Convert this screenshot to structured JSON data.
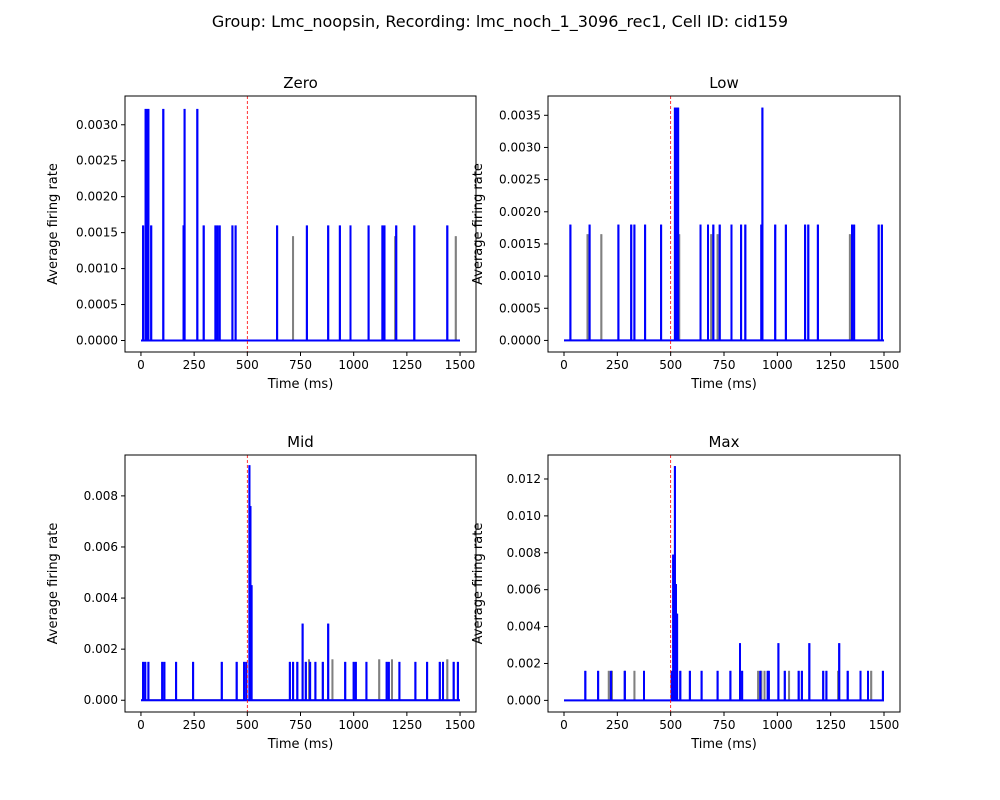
{
  "figure": {
    "suptitle": "Group: Lmc_noopsin, Recording: lmc_noch_1_3096_rec1, Cell ID: cid159"
  },
  "colors": {
    "trace_main": "#0000ff",
    "trace_other": "#808080",
    "marker": "#ff0000",
    "axes": "#000000"
  },
  "chart_data": [
    {
      "type": "line",
      "title": "Zero",
      "xlabel": "Time (ms)",
      "ylabel": "Average firing rate",
      "xlim": [
        -75,
        1575
      ],
      "ylim": [
        -0.00016,
        0.0034
      ],
      "xticks": [
        0,
        250,
        500,
        750,
        1000,
        1250,
        1500
      ],
      "yticks": [
        0.0,
        0.0005,
        0.001,
        0.0015,
        0.002,
        0.0025,
        0.003
      ],
      "ytick_labels": [
        "0.0000",
        "0.0005",
        "0.0010",
        "0.0015",
        "0.0020",
        "0.0025",
        "0.0030"
      ],
      "vline_x": 500,
      "series": [
        {
          "color": "#808080",
          "spikes": [
            [
              715,
              0.00145
            ],
            [
              1195,
              0.00145
            ],
            [
              1480,
              0.00145
            ]
          ]
        },
        {
          "color": "#0000ff",
          "spikes": [
            [
              10,
              0.0016
            ],
            [
              22,
              0.00322
            ],
            [
              28,
              0.00322
            ],
            [
              35,
              0.00322
            ],
            [
              48,
              0.0016
            ],
            [
              105,
              0.00322
            ],
            [
              200,
              0.0016
            ],
            [
              205,
              0.00322
            ],
            [
              265,
              0.00322
            ],
            [
              295,
              0.0016
            ],
            [
              350,
              0.0016
            ],
            [
              360,
              0.0016
            ],
            [
              370,
              0.0016
            ],
            [
              430,
              0.0016
            ],
            [
              445,
              0.0016
            ],
            [
              640,
              0.0016
            ],
            [
              780,
              0.0016
            ],
            [
              880,
              0.0016
            ],
            [
              935,
              0.0016
            ],
            [
              985,
              0.0016
            ],
            [
              1070,
              0.0016
            ],
            [
              1135,
              0.0016
            ],
            [
              1145,
              0.0016
            ],
            [
              1200,
              0.0016
            ],
            [
              1285,
              0.0016
            ],
            [
              1440,
              0.0016
            ]
          ]
        }
      ]
    },
    {
      "type": "line",
      "title": "Low",
      "xlabel": "Time (ms)",
      "ylabel": "Average firing rate",
      "xlim": [
        -75,
        1575
      ],
      "ylim": [
        -0.00018,
        0.0038
      ],
      "xticks": [
        0,
        250,
        500,
        750,
        1000,
        1250,
        1500
      ],
      "yticks": [
        0.0,
        0.0005,
        0.001,
        0.0015,
        0.002,
        0.0025,
        0.003,
        0.0035
      ],
      "ytick_labels": [
        "0.0000",
        "0.0005",
        "0.0010",
        "0.0015",
        "0.0020",
        "0.0025",
        "0.0030",
        "0.0035"
      ],
      "vline_x": 500,
      "series": [
        {
          "color": "#808080",
          "spikes": [
            [
              110,
              0.00165
            ],
            [
              175,
              0.00165
            ],
            [
              540,
              0.00165
            ],
            [
              690,
              0.00165
            ],
            [
              720,
              0.00165
            ],
            [
              1340,
              0.00165
            ]
          ]
        },
        {
          "color": "#0000ff",
          "spikes": [
            [
              30,
              0.0018
            ],
            [
              120,
              0.0018
            ],
            [
              255,
              0.0018
            ],
            [
              315,
              0.0018
            ],
            [
              330,
              0.0018
            ],
            [
              380,
              0.0018
            ],
            [
              455,
              0.0018
            ],
            [
              520,
              0.00362
            ],
            [
              528,
              0.00362
            ],
            [
              535,
              0.00362
            ],
            [
              640,
              0.0018
            ],
            [
              675,
              0.0018
            ],
            [
              700,
              0.0018
            ],
            [
              730,
              0.0018
            ],
            [
              785,
              0.0018
            ],
            [
              830,
              0.0018
            ],
            [
              850,
              0.0018
            ],
            [
              925,
              0.0018
            ],
            [
              930,
              0.00362
            ],
            [
              990,
              0.0018
            ],
            [
              1040,
              0.0018
            ],
            [
              1130,
              0.0018
            ],
            [
              1145,
              0.0018
            ],
            [
              1190,
              0.0018
            ],
            [
              1350,
              0.0018
            ],
            [
              1360,
              0.0018
            ],
            [
              1475,
              0.0018
            ],
            [
              1490,
              0.0018
            ]
          ]
        }
      ]
    },
    {
      "type": "line",
      "title": "Mid",
      "xlabel": "Time (ms)",
      "ylabel": "Average firing rate",
      "xlim": [
        -75,
        1575
      ],
      "ylim": [
        -0.00046,
        0.0096
      ],
      "xticks": [
        0,
        250,
        500,
        750,
        1000,
        1250,
        1500
      ],
      "yticks": [
        0.0,
        0.002,
        0.004,
        0.006,
        0.008
      ],
      "ytick_labels": [
        "0.000",
        "0.002",
        "0.004",
        "0.006",
        "0.008"
      ],
      "vline_x": 500,
      "series": [
        {
          "color": "#808080",
          "spikes": [
            [
              790,
              0.0016
            ],
            [
              900,
              0.0016
            ],
            [
              1120,
              0.0016
            ],
            [
              1180,
              0.0016
            ],
            [
              1440,
              0.0016
            ]
          ]
        },
        {
          "color": "#0000ff",
          "spikes": [
            [
              10,
              0.0015
            ],
            [
              20,
              0.0015
            ],
            [
              35,
              0.0015
            ],
            [
              100,
              0.0015
            ],
            [
              110,
              0.0015
            ],
            [
              165,
              0.0015
            ],
            [
              245,
              0.0015
            ],
            [
              380,
              0.0015
            ],
            [
              450,
              0.0015
            ],
            [
              485,
              0.0015
            ],
            [
              495,
              0.0015
            ],
            [
              510,
              0.0092
            ],
            [
              515,
              0.0076
            ],
            [
              520,
              0.0045
            ],
            [
              700,
              0.0015
            ],
            [
              715,
              0.0015
            ],
            [
              735,
              0.0015
            ],
            [
              760,
              0.003
            ],
            [
              775,
              0.0015
            ],
            [
              795,
              0.0015
            ],
            [
              820,
              0.0015
            ],
            [
              855,
              0.0015
            ],
            [
              880,
              0.003
            ],
            [
              960,
              0.0015
            ],
            [
              1000,
              0.0015
            ],
            [
              1010,
              0.0015
            ],
            [
              1060,
              0.0015
            ],
            [
              1155,
              0.0015
            ],
            [
              1165,
              0.0015
            ],
            [
              1215,
              0.0015
            ],
            [
              1290,
              0.0015
            ],
            [
              1345,
              0.0015
            ],
            [
              1405,
              0.0015
            ],
            [
              1420,
              0.0015
            ],
            [
              1470,
              0.0015
            ],
            [
              1490,
              0.0015
            ]
          ]
        }
      ]
    },
    {
      "type": "line",
      "title": "Max",
      "xlabel": "Time (ms)",
      "ylabel": "Average firing rate",
      "xlim": [
        -75,
        1575
      ],
      "ylim": [
        -0.00063,
        0.0133
      ],
      "xticks": [
        0,
        250,
        500,
        750,
        1000,
        1250,
        1500
      ],
      "yticks": [
        0.0,
        0.002,
        0.004,
        0.006,
        0.008,
        0.01,
        0.012
      ],
      "ytick_labels": [
        "0.000",
        "0.002",
        "0.004",
        "0.006",
        "0.008",
        "0.010",
        "0.012"
      ],
      "vline_x": 500,
      "series": [
        {
          "color": "#808080",
          "spikes": [
            [
              210,
              0.0016
            ],
            [
              225,
              0.0016
            ],
            [
              285,
              0.0016
            ],
            [
              330,
              0.0016
            ],
            [
              910,
              0.0016
            ],
            [
              925,
              0.0016
            ],
            [
              940,
              0.0016
            ],
            [
              1055,
              0.0016
            ],
            [
              1285,
              0.0016
            ],
            [
              1440,
              0.0016
            ]
          ]
        },
        {
          "color": "#0000ff",
          "spikes": [
            [
              100,
              0.0016
            ],
            [
              160,
              0.0016
            ],
            [
              220,
              0.0016
            ],
            [
              285,
              0.0016
            ],
            [
              375,
              0.0016
            ],
            [
              505,
              0.0016
            ],
            [
              512,
              0.0079
            ],
            [
              520,
              0.0127
            ],
            [
              525,
              0.0063
            ],
            [
              530,
              0.0047
            ],
            [
              545,
              0.0016
            ],
            [
              590,
              0.0016
            ],
            [
              645,
              0.0016
            ],
            [
              720,
              0.0016
            ],
            [
              780,
              0.0016
            ],
            [
              825,
              0.0031
            ],
            [
              835,
              0.0016
            ],
            [
              920,
              0.0016
            ],
            [
              955,
              0.0016
            ],
            [
              960,
              0.0016
            ],
            [
              1005,
              0.0031
            ],
            [
              1035,
              0.0016
            ],
            [
              1100,
              0.0016
            ],
            [
              1115,
              0.0016
            ],
            [
              1150,
              0.0031
            ],
            [
              1215,
              0.0016
            ],
            [
              1230,
              0.0016
            ],
            [
              1290,
              0.0031
            ],
            [
              1330,
              0.0016
            ],
            [
              1390,
              0.0016
            ],
            [
              1425,
              0.0016
            ],
            [
              1495,
              0.0016
            ]
          ]
        }
      ]
    }
  ]
}
